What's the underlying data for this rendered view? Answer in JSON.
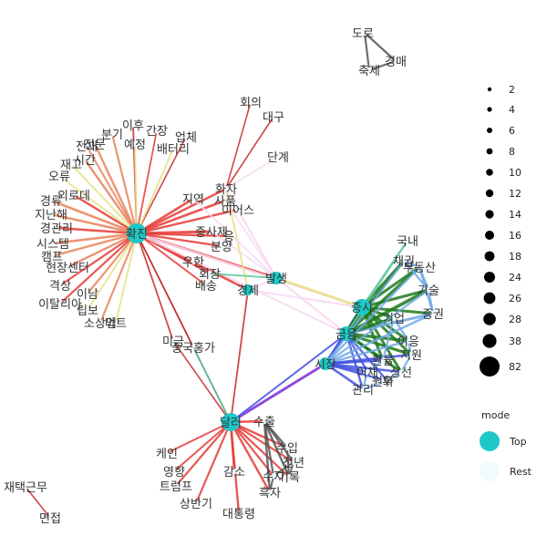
{
  "colors": {
    "top_node": "#1ec8c8",
    "rest_node": "#f0fcfc",
    "dark_red": "#c62828",
    "red": "#e53935",
    "salmon": "#e8825a",
    "khaki": "#e8e08a",
    "pink": "#f8d8f0",
    "green": "#1b7a1b",
    "blue": "#3f51e0",
    "light_blue": "#6fa8e8",
    "teal_green": "#5cc8a0",
    "purple": "#7b2bd8",
    "gray": "#555555",
    "label": "#333333"
  },
  "network": {
    "nodes": [
      {
        "id": "hwakjin",
        "label": "확진",
        "mode": "Top"
      },
      {
        "id": "dalleo",
        "label": "달러",
        "mode": "Top"
      },
      {
        "id": "jeungsi",
        "label": "증시",
        "mode": "Top"
      },
      {
        "id": "balsaeng",
        "label": "발생",
        "mode": "Top"
      },
      {
        "id": "gyeongje",
        "label": "경제",
        "mode": "Top"
      },
      {
        "id": "geumyung",
        "label": "금융",
        "mode": "Top"
      },
      {
        "id": "sijang",
        "label": "시장",
        "mode": "Top"
      },
      {
        "id": "doro",
        "label": "도로",
        "mode": "Rest"
      },
      {
        "id": "chukje",
        "label": "축제",
        "mode": "Rest"
      },
      {
        "id": "gyeongmae",
        "label": "경매",
        "mode": "Rest"
      },
      {
        "id": "taekgeunmu",
        "label": "재택근무",
        "mode": "Rest"
      },
      {
        "id": "myeonjeop",
        "label": "면접",
        "mode": "Rest"
      },
      {
        "id": "hoeui",
        "label": "회의",
        "mode": "Rest"
      },
      {
        "id": "daegu",
        "label": "대구",
        "mode": "Rest"
      },
      {
        "id": "dangye",
        "label": "단계",
        "mode": "Rest"
      },
      {
        "id": "ihu",
        "label": "이후",
        "mode": "Rest"
      },
      {
        "id": "bungi",
        "label": "분기",
        "mode": "Rest"
      },
      {
        "id": "ganjang",
        "label": "간장",
        "mode": "Rest"
      },
      {
        "id": "eopche",
        "label": "업체",
        "mode": "Rest"
      },
      {
        "id": "yejeong",
        "label": "예정",
        "mode": "Rest"
      },
      {
        "id": "battery",
        "label": "배터리",
        "mode": "Rest"
      },
      {
        "id": "jeonmun",
        "label": "전문",
        "mode": "Rest"
      },
      {
        "id": "sigan",
        "label": "시간",
        "mode": "Rest"
      },
      {
        "id": "jeonjae",
        "label": "전재",
        "mode": "Rest"
      },
      {
        "id": "jaego",
        "label": "재고",
        "mode": "Rest"
      },
      {
        "id": "oryu",
        "label": "오류",
        "mode": "Rest"
      },
      {
        "id": "oerodae",
        "label": "외로데",
        "mode": "Rest"
      },
      {
        "id": "gyeongnyu",
        "label": "경류",
        "mode": "Rest"
      },
      {
        "id": "jinanhae",
        "label": "지난해",
        "mode": "Rest"
      },
      {
        "id": "gyeonggwanri",
        "label": "경관리",
        "mode": "Rest"
      },
      {
        "id": "system",
        "label": "시스템",
        "mode": "Rest"
      },
      {
        "id": "camp",
        "label": "캠프",
        "mode": "Rest"
      },
      {
        "id": "hyeonjangcenter",
        "label": "현장센터",
        "mode": "Rest"
      },
      {
        "id": "gyeoksang",
        "label": "격상",
        "mode": "Rest"
      },
      {
        "id": "italia",
        "label": "이탈리아",
        "mode": "Rest"
      },
      {
        "id": "ilnam",
        "label": "이남",
        "mode": "Rest"
      },
      {
        "id": "ripbo",
        "label": "립보",
        "mode": "Rest"
      },
      {
        "id": "sosaneop",
        "label": "소상업",
        "mode": "Rest"
      },
      {
        "id": "mart",
        "label": "마트",
        "mode": "Rest"
      },
      {
        "id": "hwaja",
        "label": "화자",
        "mode": "Rest"
      },
      {
        "id": "jiyeok",
        "label": "지역",
        "mode": "Rest"
      },
      {
        "id": "sapum",
        "label": "사품",
        "mode": "Rest"
      },
      {
        "id": "ius",
        "label": "이어스",
        "mode": "Rest"
      },
      {
        "id": "jongsa",
        "label": "종사제",
        "mode": "Rest"
      },
      {
        "id": "eung",
        "label": "응",
        "mode": "Rest"
      },
      {
        "id": "bunyang",
        "label": "분양",
        "mode": "Rest"
      },
      {
        "id": "uhan",
        "label": "우한",
        "mode": "Rest"
      },
      {
        "id": "hoejang",
        "label": "회장",
        "mode": "Rest"
      },
      {
        "id": "baesong",
        "label": "배송",
        "mode": "Rest"
      },
      {
        "id": "migeum",
        "label": "미금",
        "mode": "Rest"
      },
      {
        "id": "junggukhangga",
        "label": "중국홍가",
        "mode": "Rest"
      },
      {
        "id": "gungnae",
        "label": "국내",
        "mode": "Rest"
      },
      {
        "id": "chaegwon",
        "label": "채권",
        "mode": "Rest"
      },
      {
        "id": "budongsan",
        "label": "부동산",
        "mode": "Rest"
      },
      {
        "id": "gisul",
        "label": "기술",
        "mode": "Rest"
      },
      {
        "id": "jeunggwon",
        "label": "증권",
        "mode": "Rest"
      },
      {
        "id": "gieop",
        "label": "기업",
        "mode": "Rest"
      },
      {
        "id": "ieung",
        "label": "이응",
        "mode": "Rest"
      },
      {
        "id": "jiwon",
        "label": "지원",
        "mode": "Rest"
      },
      {
        "id": "sangseon",
        "label": "상선",
        "mode": "Rest"
      },
      {
        "id": "ichae",
        "label": "이채",
        "mode": "Rest"
      },
      {
        "id": "gwanri",
        "label": "관리",
        "mode": "Rest"
      },
      {
        "id": "u",
        "label": "우",
        "mode": "Rest"
      },
      {
        "id": "wonhwa",
        "label": "원화",
        "mode": "Rest"
      },
      {
        "id": "hwanyul",
        "label": "환율",
        "mode": "Rest"
      },
      {
        "id": "keyin",
        "label": "케인",
        "mode": "Rest"
      },
      {
        "id": "yeonghyang",
        "label": "영향",
        "mode": "Rest"
      },
      {
        "id": "trump",
        "label": "트럼프",
        "mode": "Rest"
      },
      {
        "id": "sangbangi",
        "label": "상반기",
        "mode": "Rest"
      },
      {
        "id": "gamso",
        "label": "감소",
        "mode": "Rest"
      },
      {
        "id": "daetongnyeong",
        "label": "대통령",
        "mode": "Rest"
      },
      {
        "id": "suchul",
        "label": "수출",
        "mode": "Rest"
      },
      {
        "id": "suip",
        "label": "수입",
        "mode": "Rest"
      },
      {
        "id": "jeonnyeon",
        "label": "전년",
        "mode": "Rest"
      },
      {
        "id": "girok",
        "label": "기록",
        "mode": "Rest"
      },
      {
        "id": "suji",
        "label": "수지",
        "mode": "Rest"
      },
      {
        "id": "heukja",
        "label": "흑자",
        "mode": "Rest"
      }
    ]
  },
  "legend": {
    "size_title": "",
    "sizes": [
      "2",
      "4",
      "6",
      "8",
      "10",
      "12",
      "14",
      "16",
      "18",
      "24",
      "26",
      "28",
      "38",
      "82"
    ],
    "mode_title": "mode",
    "modes": [
      {
        "label": "Top",
        "color": "#1ec8c8"
      },
      {
        "label": "Rest",
        "color": "#f0fcfc"
      }
    ]
  }
}
